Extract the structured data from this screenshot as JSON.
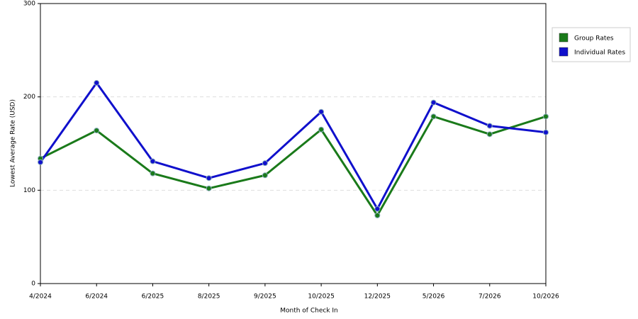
{
  "chart_data": {
    "type": "line",
    "x_label": "Month of Check In",
    "y_label": "Lowest Average Rate (USD)",
    "categories": [
      "4/2024",
      "6/2024",
      "6/2025",
      "8/2025",
      "9/2025",
      "10/2025",
      "12/2025",
      "5/2026",
      "7/2026",
      "10/2026"
    ],
    "series": [
      {
        "name": "Group Rates",
        "color": "#1a7a1a",
        "values": [
          134,
          164,
          118,
          102,
          116,
          165,
          73,
          179,
          160,
          179
        ]
      },
      {
        "name": "Individual Rates",
        "color": "#1010cc",
        "values": [
          130,
          215,
          131,
          113,
          129,
          184,
          80,
          194,
          169,
          162
        ]
      }
    ],
    "ylim": [
      0,
      300
    ],
    "yticks": [
      0,
      100,
      200,
      300
    ],
    "grid": true,
    "legend": "right"
  }
}
